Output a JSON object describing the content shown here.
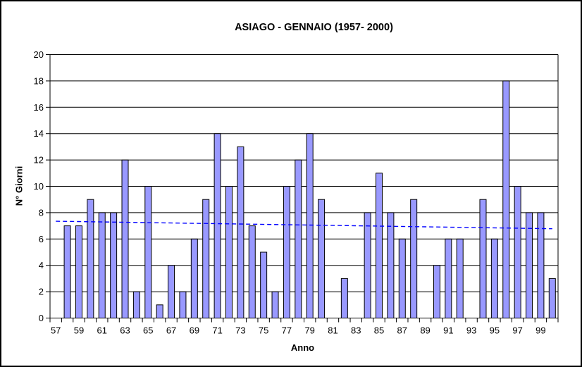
{
  "chart_data": {
    "type": "bar",
    "title": "ASIAGO - GENNAIO (1957- 2000)",
    "xlabel": "Anno",
    "ylabel": "N° Giorni",
    "categories": [
      "57",
      "58",
      "59",
      "60",
      "61",
      "62",
      "63",
      "64",
      "65",
      "66",
      "67",
      "68",
      "69",
      "70",
      "71",
      "72",
      "73",
      "74",
      "75",
      "76",
      "77",
      "78",
      "79",
      "80",
      "81",
      "82",
      "83",
      "84",
      "85",
      "86",
      "87",
      "88",
      "89",
      "90",
      "91",
      "92",
      "93",
      "94",
      "95",
      "96",
      "97",
      "98",
      "99",
      "00"
    ],
    "values": [
      0,
      7,
      7,
      9,
      8,
      8,
      12,
      2,
      10,
      1,
      4,
      2,
      6,
      9,
      14,
      10,
      13,
      7,
      5,
      2,
      10,
      12,
      14,
      9,
      0,
      3,
      0,
      8,
      11,
      8,
      6,
      9,
      0,
      4,
      6,
      6,
      0,
      9,
      6,
      18,
      10,
      8,
      8,
      3
    ],
    "ylim": [
      0,
      20
    ],
    "ytick_step": 2,
    "xtick_label_every": 2,
    "grid": true,
    "legend": null,
    "colors": {
      "bar_fill": "#9999FF",
      "bar_border": "#000000",
      "grid": "#000000",
      "axis": "#000000",
      "background": "#FFFFFF",
      "trend": "#0000FF"
    },
    "trendline": {
      "type": "linear",
      "start_value": 7.35,
      "end_value": 6.78,
      "style": "dashed"
    }
  }
}
